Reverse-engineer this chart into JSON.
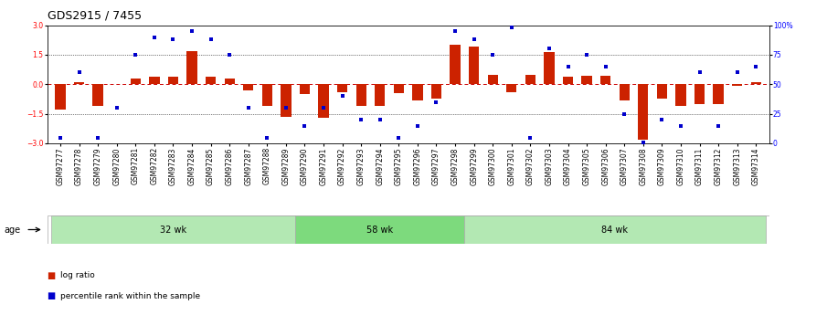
{
  "title": "GDS2915 / 7455",
  "samples": [
    "GSM97277",
    "GSM97278",
    "GSM97279",
    "GSM97280",
    "GSM97281",
    "GSM97282",
    "GSM97283",
    "GSM97284",
    "GSM97285",
    "GSM97286",
    "GSM97287",
    "GSM97288",
    "GSM97289",
    "GSM97290",
    "GSM97291",
    "GSM97292",
    "GSM97293",
    "GSM97294",
    "GSM97295",
    "GSM97296",
    "GSM97297",
    "GSM97298",
    "GSM97299",
    "GSM97300",
    "GSM97301",
    "GSM97302",
    "GSM97303",
    "GSM97304",
    "GSM97305",
    "GSM97306",
    "GSM97307",
    "GSM97308",
    "GSM97309",
    "GSM97310",
    "GSM97311",
    "GSM97312",
    "GSM97313",
    "GSM97314"
  ],
  "log_ratio": [
    -1.3,
    0.1,
    -1.1,
    0.0,
    0.3,
    0.4,
    0.4,
    1.7,
    0.4,
    0.3,
    -0.3,
    -1.1,
    -1.65,
    -0.5,
    -1.7,
    -0.4,
    -1.1,
    -1.1,
    -0.45,
    -0.8,
    -0.75,
    2.0,
    1.9,
    0.5,
    -0.4,
    0.5,
    1.65,
    0.4,
    0.45,
    0.45,
    -0.8,
    -2.8,
    -0.75,
    -1.1,
    -1.0,
    -1.0,
    -0.1,
    0.1
  ],
  "percentile": [
    5,
    60,
    5,
    30,
    75,
    90,
    88,
    95,
    88,
    75,
    30,
    5,
    30,
    15,
    30,
    40,
    20,
    20,
    5,
    15,
    35,
    95,
    88,
    75,
    98,
    5,
    80,
    65,
    75,
    65,
    25,
    1,
    20,
    15,
    60,
    15,
    60,
    65
  ],
  "groups": [
    {
      "label": "32 wk",
      "start": 0,
      "end": 13
    },
    {
      "label": "58 wk",
      "start": 13,
      "end": 22
    },
    {
      "label": "84 wk",
      "start": 22,
      "end": 38
    }
  ],
  "group_colors": [
    "#b3e8b3",
    "#7dda7d",
    "#b3e8b3"
  ],
  "bar_color": "#cc2200",
  "dot_color": "#0000cc",
  "zero_line_color": "#cc0000",
  "background_color": "#ffffff",
  "title_fontsize": 9,
  "tick_fontsize": 5.5,
  "label_fontsize": 5.5,
  "yticks_left": [
    -3,
    -1.5,
    0,
    1.5,
    3
  ],
  "yticks_right": [
    0,
    25,
    50,
    75,
    100
  ],
  "ylim_left": [
    -3.0,
    3.0
  ],
  "ylim_right": [
    0,
    100
  ]
}
